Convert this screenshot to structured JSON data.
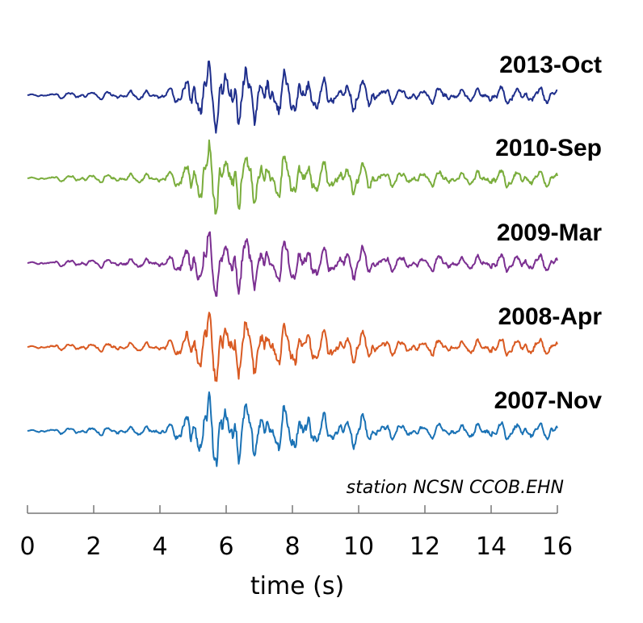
{
  "chart_data": {
    "type": "line",
    "annotation": "station NCSN CCOB.EHN",
    "xlabel": "time (s)",
    "ylabel": "",
    "xlim": [
      0,
      16
    ],
    "x_ticks": [
      0,
      2,
      4,
      6,
      8,
      10,
      12,
      14,
      16
    ],
    "grid": false,
    "legend": "labels right of each trace",
    "envelope": {
      "t": [
        0,
        1,
        2,
        3,
        4,
        4.5,
        4.8,
        5.2,
        5.5,
        5.8,
        6.0,
        6.3,
        6.8,
        7.4,
        8.0,
        8.8,
        9.5,
        10.0,
        10.6,
        11.2,
        12.0,
        12.5,
        13.0,
        14.0,
        15.0,
        16.0
      ],
      "a": [
        0.02,
        0.08,
        0.11,
        0.12,
        0.14,
        0.22,
        0.55,
        0.8,
        1.0,
        0.9,
        1.0,
        0.95,
        0.7,
        0.6,
        0.62,
        0.45,
        0.3,
        0.5,
        0.25,
        0.2,
        0.18,
        0.25,
        0.15,
        0.25,
        0.25,
        0.2
      ]
    },
    "series": [
      {
        "name": "2013-Oct",
        "color": "#1f2f8c"
      },
      {
        "name": "2010-Sep",
        "color": "#7aad3c"
      },
      {
        "name": "2009-Mar",
        "color": "#7b2f91"
      },
      {
        "name": "2008-Apr",
        "color": "#d95a22"
      },
      {
        "name": "2007-Nov",
        "color": "#1a72b5"
      }
    ]
  }
}
